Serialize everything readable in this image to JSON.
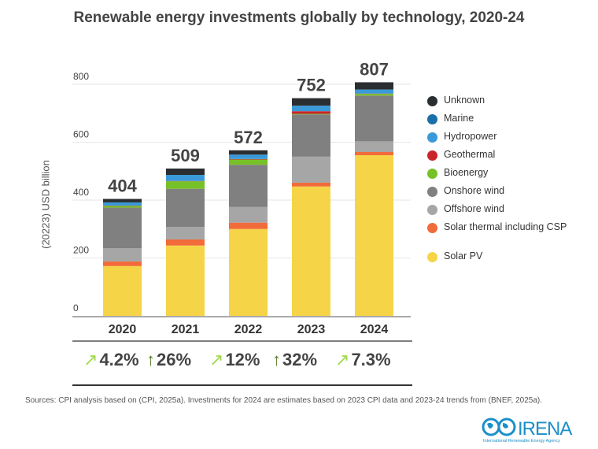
{
  "chart_data": {
    "type": "bar",
    "stacked": true,
    "title": "Renewable energy investments globally by technology, 2020-24",
    "ylabel": "(20223) USD billion",
    "xlabel": "",
    "ylim": [
      0,
      800
    ],
    "yticks": [
      "0",
      "200",
      "400",
      "600",
      "800"
    ],
    "grid": true,
    "legend_position": "right",
    "categories": [
      "2020",
      "2021",
      "2022",
      "2023",
      "2024"
    ],
    "totals": [
      "404",
      "509",
      "572",
      "752",
      "807"
    ],
    "series": [
      {
        "name": "Solar PV",
        "color": "#f5d547",
        "values": [
          172,
          243,
          300,
          447,
          555
        ]
      },
      {
        "name": "Solar thermal including CSP",
        "color": "#f26b3a",
        "values": [
          16,
          21,
          22,
          13,
          11
        ]
      },
      {
        "name": "Offshore wind",
        "color": "#a6a6a6",
        "values": [
          46,
          43,
          54,
          90,
          37
        ]
      },
      {
        "name": "Onshore wind",
        "color": "#808080",
        "values": [
          140,
          132,
          146,
          146,
          158
        ]
      },
      {
        "name": "Bioenergy",
        "color": "#77c128",
        "values": [
          6,
          26,
          18,
          2,
          6
        ]
      },
      {
        "name": "Geothermal",
        "color": "#c9262b",
        "values": [
          1,
          1,
          2,
          9,
          1
        ]
      },
      {
        "name": "Hydropower",
        "color": "#3a9ad9",
        "values": [
          11,
          21,
          15,
          19,
          14
        ]
      },
      {
        "name": "Marine",
        "color": "#1a6fa8",
        "values": [
          0,
          0,
          0,
          0,
          0
        ]
      },
      {
        "name": "Unknown",
        "color": "#2b2e31",
        "values": [
          12,
          22,
          15,
          26,
          25
        ]
      }
    ],
    "growth": [
      {
        "value": "4.2%",
        "arrow": "diagonal",
        "color": "#a3d94a"
      },
      {
        "value": "26%",
        "arrow": "up",
        "color": "#5a7a2a"
      },
      {
        "value": "12%",
        "arrow": "diagonal",
        "color": "#a3d94a"
      },
      {
        "value": "32%",
        "arrow": "up",
        "color": "#5a7a2a"
      },
      {
        "value": "7.3%",
        "arrow": "diagonal",
        "color": "#a3d94a"
      }
    ]
  },
  "source": "Sources: CPI analysis based on (CPI, 2025a). Investments for 2024 are estimates based on 2023 CPI data and 2023-24 trends from (BNEF, 2025a).",
  "logo": {
    "name": "IRENA",
    "subtitle": "International Renewable Energy Agency"
  }
}
